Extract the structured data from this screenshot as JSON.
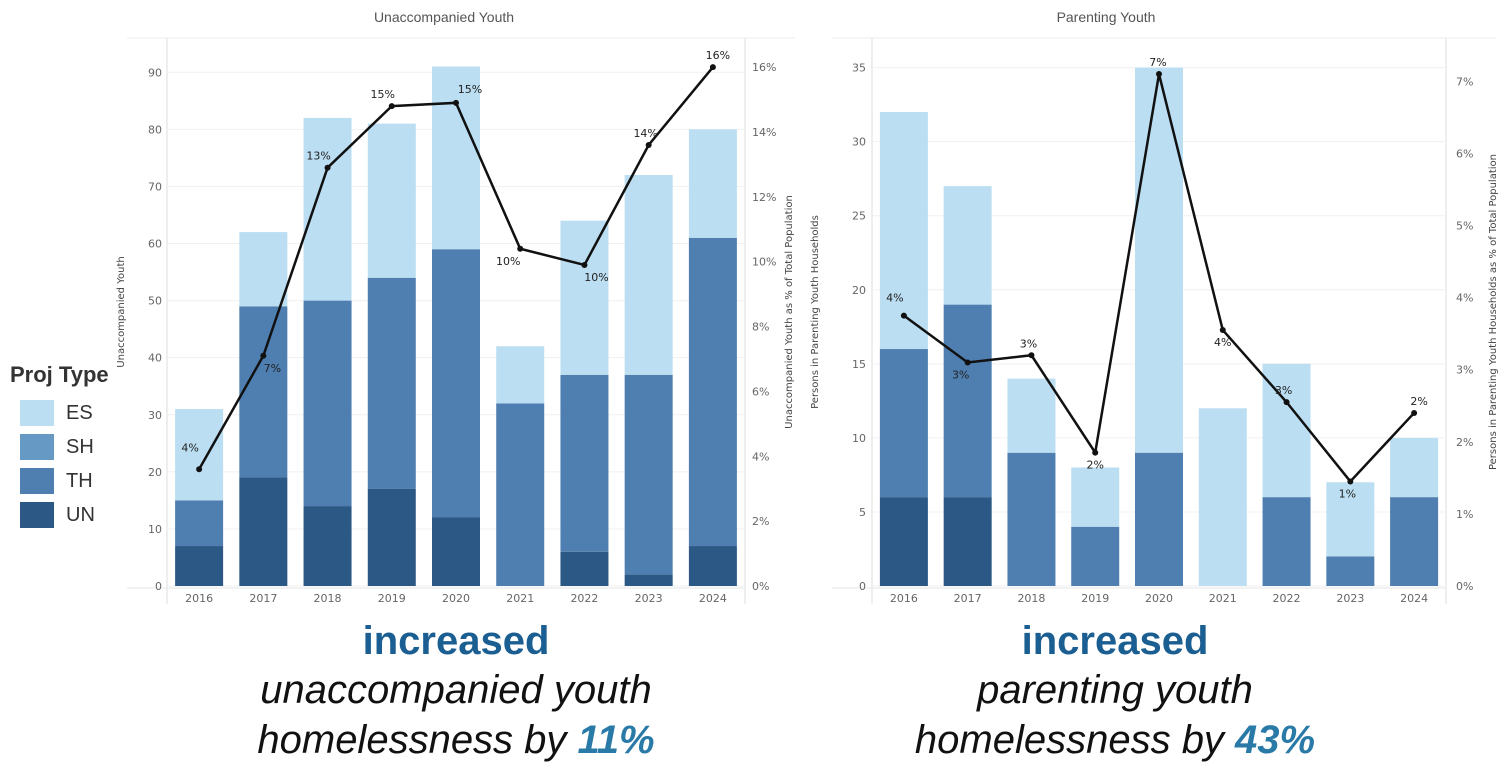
{
  "legend": {
    "title": "Proj Type",
    "items": [
      {
        "label": "ES",
        "color": "#bbdef2"
      },
      {
        "label": "SH",
        "color": "#6699c3"
      },
      {
        "label": "TH",
        "color": "#4f7fb0"
      },
      {
        "label": "UN",
        "color": "#2c5885"
      }
    ]
  },
  "chart_data": [
    {
      "type": "bar",
      "stacked": true,
      "title": "Unaccompanied Youth",
      "ylabel": "Unaccompanied Youth",
      "y2label": "Unaccompanied Youth as % of Total Population",
      "categories": [
        "2016",
        "2017",
        "2018",
        "2019",
        "2020",
        "2021",
        "2022",
        "2023",
        "2024"
      ],
      "ylim": [
        0,
        96
      ],
      "yticks": [
        0,
        10,
        20,
        30,
        40,
        50,
        60,
        70,
        80,
        90
      ],
      "y2lim": [
        0,
        16.9
      ],
      "y2ticks": [
        "0%",
        "2%",
        "4%",
        "6%",
        "8%",
        "10%",
        "12%",
        "14%",
        "16%"
      ],
      "series": [
        {
          "name": "UN",
          "values": [
            7,
            19,
            14,
            17,
            12,
            0,
            6,
            2,
            7
          ]
        },
        {
          "name": "TH",
          "values": [
            8,
            30,
            36,
            37,
            47,
            32,
            31,
            35,
            54
          ]
        },
        {
          "name": "ES",
          "values": [
            16,
            13,
            32,
            27,
            32,
            10,
            27,
            35,
            19
          ]
        }
      ],
      "line_series": {
        "values": [
          3.6,
          7.1,
          12.9,
          14.8,
          14.9,
          10.4,
          9.9,
          13.6,
          16.0
        ],
        "labels": [
          "4%",
          "7%",
          "13%",
          "15%",
          "15%",
          "10%",
          "10%",
          "14%",
          "16%"
        ]
      },
      "grid": true
    },
    {
      "type": "bar",
      "stacked": true,
      "title": "Parenting Youth",
      "ylabel": "Persons in Parenting Youth Households",
      "y2label": "Persons in Parenting Youth Households as % of Total Population",
      "categories": [
        "2016",
        "2017",
        "2018",
        "2019",
        "2020",
        "2021",
        "2022",
        "2023",
        "2024"
      ],
      "ylim": [
        0,
        37
      ],
      "yticks": [
        0,
        5,
        10,
        15,
        20,
        25,
        30,
        35
      ],
      "y2lim": [
        0,
        7.6
      ],
      "y2ticks": [
        "0%",
        "1%",
        "2%",
        "3%",
        "4%",
        "5%",
        "6%",
        "7%"
      ],
      "series": [
        {
          "name": "UN",
          "values": [
            6,
            6,
            0,
            0,
            0,
            0,
            0,
            0,
            0
          ]
        },
        {
          "name": "TH",
          "values": [
            10,
            13,
            9,
            4,
            9,
            0,
            6,
            2,
            6
          ]
        },
        {
          "name": "ES",
          "values": [
            16,
            8,
            5,
            4,
            26,
            12,
            9,
            5,
            4
          ]
        }
      ],
      "line_series": {
        "values": [
          3.75,
          3.1,
          3.2,
          1.85,
          7.1,
          3.55,
          2.55,
          1.45,
          2.4
        ],
        "labels": [
          "4%",
          "3%",
          "3%",
          "2%",
          "7%",
          "4%",
          "3%",
          "1%",
          "2%"
        ]
      },
      "grid": true
    }
  ],
  "captions": [
    {
      "head": "increased",
      "line1": "unaccompanied youth",
      "line2_prefix": "homelessness by ",
      "pct": "11%"
    },
    {
      "head": "increased",
      "line1": "parenting youth",
      "line2_prefix": "homelessness by ",
      "pct": "43%"
    }
  ]
}
